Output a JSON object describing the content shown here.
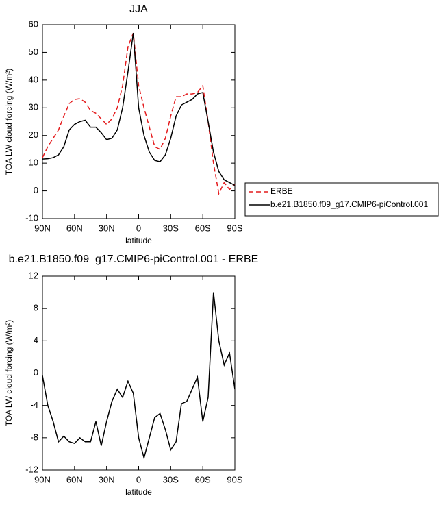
{
  "chart_data": [
    {
      "type": "line",
      "title": "JJA",
      "xlabel": "latitude",
      "ylabel": "TOA LW cloud forcing (W/m²)",
      "xlim": [
        90,
        -90
      ],
      "xticks": [
        {
          "value": 90,
          "label": "90N"
        },
        {
          "value": 60,
          "label": "60N"
        },
        {
          "value": 30,
          "label": "30N"
        },
        0,
        {
          "value": -30,
          "label": "30S"
        },
        {
          "value": -60,
          "label": "60S"
        },
        {
          "value": -90,
          "label": "90S"
        }
      ],
      "ylim": [
        -10,
        60
      ],
      "yticks": [
        -10,
        0,
        10,
        20,
        30,
        40,
        50,
        60
      ],
      "legend": "right",
      "x": [
        90,
        85,
        80,
        75,
        70,
        65,
        60,
        55,
        50,
        45,
        40,
        35,
        30,
        25,
        20,
        15,
        10,
        5,
        0,
        -5,
        -10,
        -15,
        -20,
        -25,
        -30,
        -35,
        -40,
        -45,
        -50,
        -55,
        -60,
        -65,
        -70,
        -75,
        -80,
        -85,
        -90
      ],
      "series": [
        {
          "name": "ERBE",
          "color": "#e41a1c",
          "dash": true,
          "values": [
            12,
            16,
            19,
            22,
            27,
            31.5,
            33,
            33.3,
            32,
            29,
            28,
            26,
            24,
            26,
            30,
            38,
            52,
            57,
            38,
            30,
            23,
            16,
            15,
            19,
            27,
            34,
            34,
            35,
            35,
            35.5,
            38,
            25,
            10,
            -1,
            3,
            0.5,
            2.5
          ]
        },
        {
          "name": "b.e21.B1850.f09_g17.CMIP6-piControl.001",
          "color": "#000000",
          "dash": false,
          "values": [
            11.5,
            11.6,
            12,
            13,
            16,
            22,
            24,
            25,
            25.5,
            23,
            23,
            21,
            18.5,
            19,
            22,
            30,
            43,
            57,
            30,
            20,
            14,
            11,
            10.5,
            13,
            19,
            27,
            31,
            32,
            33,
            35,
            35.5,
            25,
            14,
            7,
            4,
            3,
            2
          ]
        }
      ]
    },
    {
      "type": "line",
      "title": "b.e21.B1850.f09_g17.CMIP6-piControl.001 - ERBE",
      "xlabel": "latitude",
      "ylabel": "TOA LW cloud forcing (W/m²)",
      "xlim": [
        90,
        -90
      ],
      "xticks": [
        {
          "value": 90,
          "label": "90N"
        },
        {
          "value": 60,
          "label": "60N"
        },
        {
          "value": 30,
          "label": "30N"
        },
        0,
        {
          "value": -30,
          "label": "30S"
        },
        {
          "value": -60,
          "label": "60S"
        },
        {
          "value": -90,
          "label": "90S"
        }
      ],
      "ylim": [
        -12,
        12
      ],
      "yticks": [
        -12,
        -8,
        -4,
        0,
        4,
        8,
        12
      ],
      "x": [
        90,
        85,
        80,
        75,
        70,
        65,
        60,
        55,
        50,
        45,
        40,
        35,
        30,
        25,
        20,
        15,
        10,
        5,
        0,
        -5,
        -10,
        -15,
        -20,
        -25,
        -30,
        -35,
        -40,
        -45,
        -50,
        -55,
        -60,
        -65,
        -70,
        -75,
        -80,
        -85,
        -90
      ],
      "series": [
        {
          "color": "#000000",
          "dash": false,
          "values": [
            -0.3,
            -4,
            -6,
            -8.5,
            -7.8,
            -8.5,
            -8.7,
            -8,
            -8.5,
            -8.5,
            -6,
            -9,
            -6,
            -3.5,
            -2,
            -3,
            -1,
            -2.5,
            -8,
            -10.5,
            -8,
            -5.5,
            -5,
            -7,
            -9.5,
            -8.5,
            -3.8,
            -3.5,
            -2,
            -0.5,
            -6,
            -3,
            10,
            4,
            1,
            2.5,
            -2
          ]
        }
      ]
    }
  ]
}
